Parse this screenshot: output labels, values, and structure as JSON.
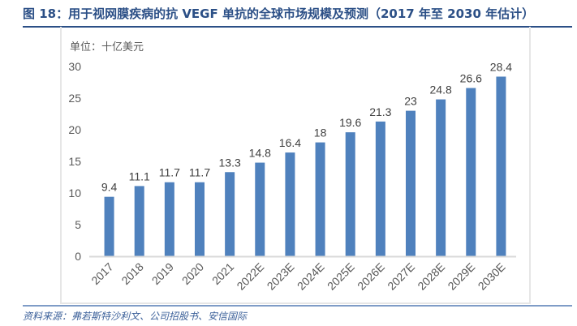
{
  "figure": {
    "title": "图 18：用于视网膜疾病的抗 VEGF 单抗的全球市场规模及预测（2017 年至 2030 年估计）",
    "unit_label": "单位：十亿美元",
    "source": "资料来源：弗若斯特沙利文、公司招股书、安信国际"
  },
  "colors": {
    "bar": "#4f81bd",
    "title": "#2b4f86",
    "axis": "#d9d9d9"
  },
  "chart_data": {
    "type": "bar",
    "title": "用于视网膜疾病的抗 VEGF 单抗的全球市场规模及预测（2017 年至 2030 年估计）",
    "xlabel": "",
    "ylabel": "单位：十亿美元",
    "categories": [
      "2017",
      "2018",
      "2019",
      "2020",
      "2021",
      "2022E",
      "2023E",
      "2024E",
      "2025E",
      "2026E",
      "2027E",
      "2028E",
      "2029E",
      "2030E"
    ],
    "values": [
      9.4,
      11.1,
      11.7,
      11.7,
      13.3,
      14.8,
      16.4,
      18,
      19.6,
      21.3,
      23,
      24.8,
      26.6,
      28.4
    ],
    "data_labels": [
      "9.4",
      "11.1",
      "11.7",
      "11.7",
      "13.3",
      "14.8",
      "16.4",
      "18",
      "19.6",
      "21.3",
      "23",
      "24.8",
      "26.6",
      "28.4"
    ],
    "ylim": [
      0,
      30
    ],
    "yticks": [
      0,
      5,
      10,
      15,
      20,
      25,
      30
    ],
    "grid": false,
    "legend": "none"
  }
}
